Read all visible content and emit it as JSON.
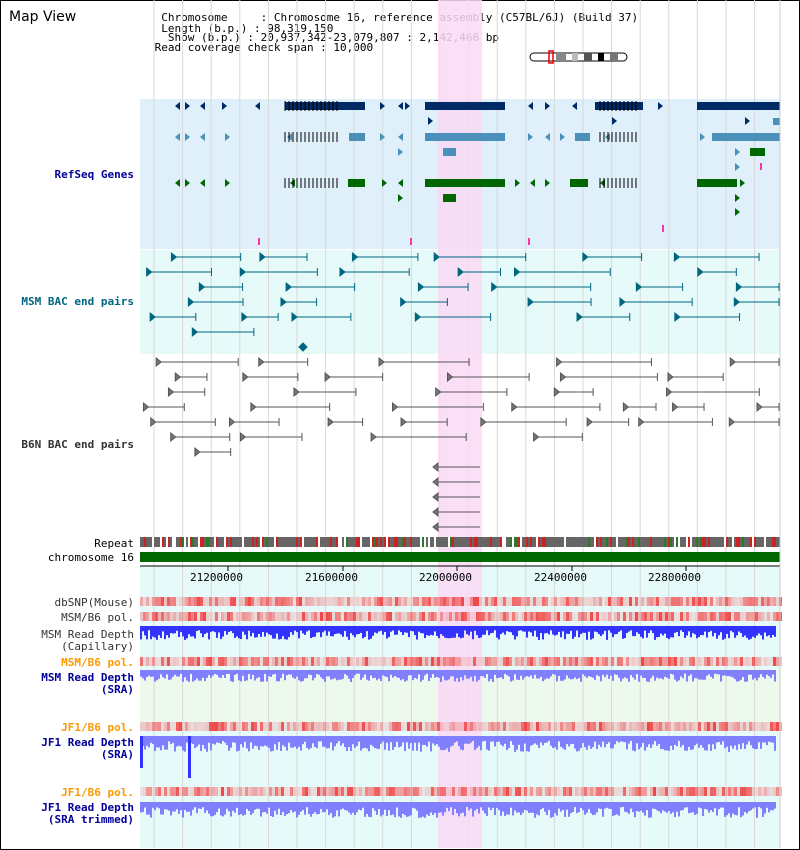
{
  "view_title": "Map View",
  "header": {
    "chromosome_line": "  Chromosome     : Chromosome 16, reference assembly (C57BL/6J) (Build 37)",
    "length_line": "  Length (b.p.) : 98,319,150",
    "show_line": "   Show (b.p.) : 20,937,342-23,079,807 : 2,142,466 bp",
    "coverage_line": " Read coverage check span : 10,000"
  },
  "tracks": {
    "refseq": {
      "label": "RefSeq Genes",
      "color": "#000099"
    },
    "msm_bac": {
      "label": "MSM BAC end pairs",
      "color": "#006680"
    },
    "b6n_bac": {
      "label": "B6N BAC end pairs",
      "color": "#333333"
    },
    "repeat": {
      "label": "Repeat"
    },
    "chromosome": {
      "label": "chromosome 16"
    },
    "dbsnp": {
      "label": "dbSNP(Mouse)"
    },
    "msm_b6_pol_1": {
      "label": "MSM/B6 pol."
    },
    "msm_read_depth_cap": {
      "line1": "MSM Read Depth",
      "line2": "(Capillary)"
    },
    "msm_b6_pol_2": {
      "label": "MSM/B6 pol.",
      "color": "#ff9900"
    },
    "msm_read_depth_sra": {
      "line1": "MSM Read Depth",
      "line2": "(SRA)",
      "color": "#000099"
    },
    "jf1_b6_pol_1": {
      "label": "JF1/B6 pol.",
      "color": "#ff9900"
    },
    "jf1_read_depth_sra": {
      "line1": "JF1 Read Depth",
      "line2": "(SRA)",
      "color": "#000099"
    },
    "jf1_b6_pol_2": {
      "label": "JF1/B6 pol.",
      "color": "#ff9900"
    },
    "jf1_read_depth_trim": {
      "line1": "JF1 Read Depth",
      "line2": "(SRA trimmed)",
      "color": "#000099"
    }
  },
  "axis": {
    "ticks": [
      "21200000",
      "21600000",
      "22000000",
      "22400000",
      "22800000"
    ]
  },
  "colors": {
    "refseq_bg": "#dff0fb",
    "msm_bg": "#e6fafa",
    "highlight": "#f9d9f5",
    "refseq_dark": "#002a66",
    "refseq_mid": "#4a90b8",
    "refseq_green": "#006600",
    "chromosome_green": "#006600",
    "depth_blue": "#3333ff",
    "depth_light": "#8080ff"
  }
}
